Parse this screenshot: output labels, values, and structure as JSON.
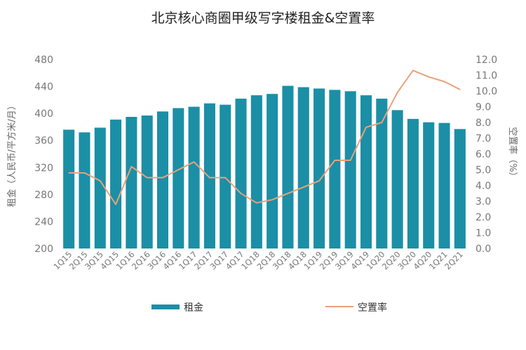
{
  "chart_data": {
    "type": "bar+line",
    "title": "北京核心商圈甲级写字楼租金&空置率",
    "categories": [
      "1Q15",
      "2Q15",
      "3Q15",
      "4Q15",
      "1Q16",
      "2Q16",
      "3Q16",
      "4Q16",
      "1Q17",
      "2Q17",
      "3Q17",
      "4Q17",
      "1Q18",
      "2Q18",
      "3Q18",
      "4Q18",
      "1Q19",
      "2Q19",
      "3Q19",
      "4Q19",
      "1Q20",
      "2Q20",
      "3Q20",
      "4Q20",
      "1Q21",
      "2Q21"
    ],
    "series": [
      {
        "name": "租金",
        "type": "bar",
        "axis": "left",
        "color": "#1b8fa6",
        "values": [
          376,
          372,
          379,
          391,
          395,
          397,
          403,
          408,
          410,
          415,
          413,
          422,
          427,
          429,
          441,
          439,
          437,
          435,
          433,
          427,
          422,
          405,
          392,
          387,
          386,
          377
        ]
      },
      {
        "name": "空置率",
        "type": "line",
        "axis": "right",
        "color": "#e8a27c",
        "values": [
          4.8,
          4.8,
          4.3,
          2.8,
          5.2,
          4.5,
          4.5,
          5.0,
          5.5,
          4.5,
          4.5,
          3.5,
          2.9,
          3.1,
          3.5,
          3.9,
          4.3,
          5.6,
          5.6,
          7.7,
          8.0,
          9.9,
          11.3,
          10.9,
          10.6,
          10.1
        ]
      }
    ],
    "ylabel_left": "租金（人民币/平方米/月）",
    "ylabel_right": "空置率（%）",
    "ylim_left": [
      200,
      480
    ],
    "yticks_left": [
      "480",
      "440",
      "400",
      "360",
      "320",
      "280",
      "240",
      "200"
    ],
    "ylim_right": [
      0,
      12
    ],
    "yticks_right": [
      "12.0",
      "11.0",
      "10.0",
      "9.0",
      "8.0",
      "7.0",
      "6.0",
      "5.0",
      "4.0",
      "3.0",
      "2.0",
      "1.0",
      "0.0"
    ],
    "grid": false,
    "legend_position": "bottom"
  }
}
